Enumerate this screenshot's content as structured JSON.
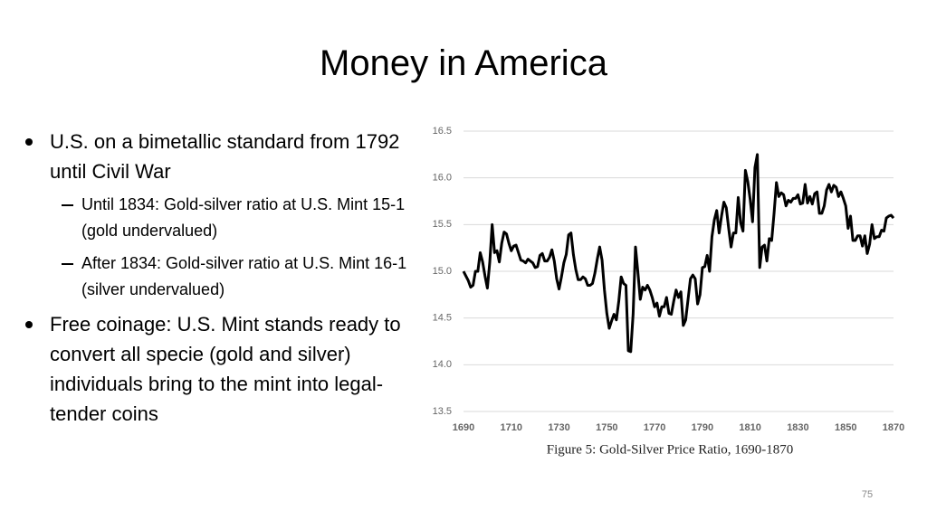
{
  "slide": {
    "title": "Money in America",
    "bullets": [
      {
        "text": "U.S. on a bimetallic standard from 1792 until Civil War",
        "sub": [
          "Until 1834: Gold-silver ratio at U.S. Mint 15-1 (gold undervalued)",
          "After 1834: Gold-silver ratio at U.S. Mint 16-1 (silver undervalued)"
        ]
      },
      {
        "text": "Free coinage: U.S. Mint stands ready to convert all specie (gold and silver) individuals bring to the mint into legal-tender coins"
      }
    ],
    "page_number": "75"
  },
  "chart_data": {
    "type": "line",
    "caption": "Figure 5: Gold-Silver Price Ratio, 1690-1870",
    "color": "#000000",
    "grid": true,
    "xlim": [
      1690,
      1870
    ],
    "xticks": [
      1690,
      1710,
      1730,
      1750,
      1770,
      1790,
      1810,
      1830,
      1850,
      1870
    ],
    "ylim": [
      13.5,
      16.5
    ],
    "yticks": [
      13.5,
      {
        "value": 14,
        "label": "14.0"
      },
      14.5,
      {
        "value": 15,
        "label": "15.0"
      },
      15.5,
      {
        "value": 16,
        "label": "16.0"
      },
      16.5
    ],
    "x": [
      1690,
      1691,
      1692,
      1693,
      1694,
      1695,
      1696,
      1697,
      1698,
      1699,
      1700,
      1701,
      1702,
      1703,
      1704,
      1705,
      1706,
      1707,
      1708,
      1709,
      1710,
      1711,
      1712,
      1713,
      1714,
      1715,
      1716,
      1717,
      1718,
      1719,
      1720,
      1721,
      1722,
      1723,
      1724,
      1725,
      1726,
      1727,
      1728,
      1729,
      1730,
      1731,
      1732,
      1733,
      1734,
      1735,
      1736,
      1737,
      1738,
      1739,
      1740,
      1741,
      1742,
      1743,
      1744,
      1745,
      1746,
      1747,
      1748,
      1749,
      1750,
      1751,
      1752,
      1753,
      1754,
      1755,
      1756,
      1757,
      1758,
      1759,
      1760,
      1761,
      1762,
      1763,
      1764,
      1765,
      1766,
      1767,
      1768,
      1769,
      1770,
      1771,
      1772,
      1773,
      1774,
      1775,
      1776,
      1777,
      1778,
      1779,
      1780,
      1781,
      1782,
      1783,
      1784,
      1785,
      1786,
      1787,
      1788,
      1789,
      1790,
      1791,
      1792,
      1793,
      1794,
      1795,
      1796,
      1797,
      1798,
      1799,
      1800,
      1801,
      1802,
      1803,
      1804,
      1805,
      1806,
      1807,
      1808,
      1809,
      1810,
      1811,
      1812,
      1813,
      1814,
      1815,
      1816,
      1817,
      1818,
      1819,
      1820,
      1821,
      1822,
      1823,
      1824,
      1825,
      1826,
      1827,
      1828,
      1829,
      1830,
      1831,
      1832,
      1833,
      1834,
      1835,
      1836,
      1837,
      1838,
      1839,
      1840,
      1841,
      1842,
      1843,
      1844,
      1845,
      1846,
      1847,
      1848,
      1849,
      1850,
      1851,
      1852,
      1853,
      1854,
      1855,
      1856,
      1857,
      1858,
      1859,
      1860,
      1861,
      1862,
      1863,
      1864,
      1865,
      1866,
      1867,
      1868,
      1869,
      1870
    ],
    "values": [
      15.0,
      14.95,
      14.9,
      14.83,
      14.85,
      15.0,
      15.0,
      15.2,
      15.1,
      14.95,
      14.82,
      15.1,
      15.5,
      15.2,
      15.22,
      15.1,
      15.3,
      15.42,
      15.4,
      15.3,
      15.22,
      15.27,
      15.28,
      15.2,
      15.12,
      15.11,
      15.09,
      15.13,
      15.11,
      15.09,
      15.04,
      15.05,
      15.17,
      15.19,
      15.11,
      15.11,
      15.15,
      15.23,
      15.11,
      14.92,
      14.81,
      14.94,
      15.09,
      15.18,
      15.39,
      15.41,
      15.18,
      15.02,
      14.91,
      14.91,
      14.94,
      14.92,
      14.85,
      14.85,
      14.87,
      14.98,
      15.13,
      15.26,
      15.12,
      14.8,
      14.55,
      14.39,
      14.47,
      14.54,
      14.48,
      14.68,
      14.94,
      14.87,
      14.85,
      14.15,
      14.14,
      14.54,
      15.26,
      14.99,
      14.7,
      14.83,
      14.8,
      14.85,
      14.8,
      14.72,
      14.62,
      14.66,
      14.52,
      14.62,
      14.62,
      14.72,
      14.55,
      14.54,
      14.68,
      14.8,
      14.72,
      14.78,
      14.42,
      14.48,
      14.7,
      14.92,
      14.96,
      14.92,
      14.65,
      14.75,
      15.04,
      15.05,
      15.17,
      15.0,
      15.37,
      15.55,
      15.65,
      15.41,
      15.59,
      15.74,
      15.68,
      15.46,
      15.26,
      15.41,
      15.41,
      15.79,
      15.52,
      15.43,
      16.08,
      15.96,
      15.77,
      15.53,
      16.11,
      16.25,
      15.04,
      15.26,
      15.28,
      15.11,
      15.35,
      15.33,
      15.62,
      15.95,
      15.8,
      15.84,
      15.82,
      15.7,
      15.76,
      15.74,
      15.78,
      15.78,
      15.82,
      15.72,
      15.73,
      15.93,
      15.73,
      15.8,
      15.72,
      15.83,
      15.85,
      15.62,
      15.62,
      15.7,
      15.87,
      15.93,
      15.85,
      15.92,
      15.9,
      15.8,
      15.85,
      15.78,
      15.7,
      15.46,
      15.59,
      15.33,
      15.33,
      15.38,
      15.38,
      15.27,
      15.38,
      15.19,
      15.29,
      15.5,
      15.35,
      15.37,
      15.37,
      15.44,
      15.43,
      15.57,
      15.59,
      15.6,
      15.57
    ]
  }
}
